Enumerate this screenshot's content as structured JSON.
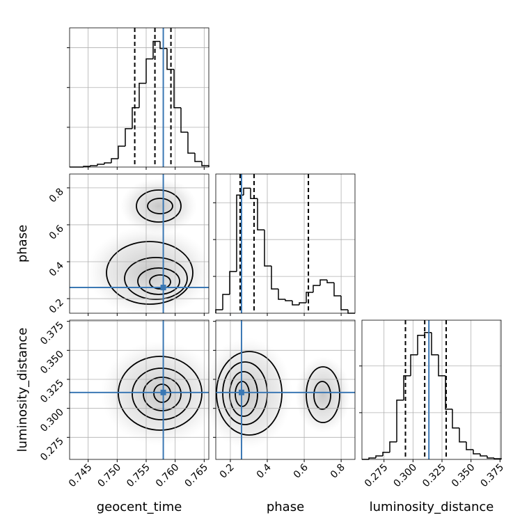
{
  "chart_data": {
    "type": "corner",
    "grid": true,
    "truth_color": "#3b78b4",
    "parameters": [
      {
        "name": "geocent_time",
        "xlim": [
          0.7418,
          0.7658
        ],
        "xticks": [
          0.745,
          {
            "value": 0.75,
            "label": "0.750"
          },
          0.755,
          {
            "value": 0.76,
            "label": "0.760"
          },
          0.765
        ],
        "bins": [
          0.7418,
          0.743,
          0.7442,
          0.7454,
          0.7466,
          0.7478,
          0.749,
          0.7502,
          0.7514,
          0.7526,
          0.7538,
          0.755,
          0.7562,
          0.7574,
          0.7586,
          0.7598,
          0.761,
          0.7622,
          0.7634,
          0.7646,
          0.7658
        ],
        "counts": [
          0,
          0,
          9,
          18,
          35,
          53,
          105,
          263,
          482,
          746,
          1053,
          1360,
          1579,
          1491,
          1228,
          746,
          439,
          175,
          70,
          18
        ],
        "ylim": [
          0,
          1750
        ],
        "yticks": [
          500,
          1000,
          1500
        ],
        "quantiles": [
          0.75303,
          0.75651,
          0.75927
        ],
        "truth": 0.75795
      },
      {
        "name": "phase",
        "xlim": [
          0.121,
          0.875
        ],
        "xticks": [
          0.2,
          0.4,
          0.6,
          0.8
        ],
        "bins": [
          0.121,
          0.1587,
          0.1964,
          0.2341,
          0.2718,
          0.3095,
          0.3472,
          0.3849,
          0.4226,
          0.4603,
          0.498,
          0.5357,
          0.5734,
          0.6111,
          0.6488,
          0.6865,
          0.7242,
          0.7619,
          0.7996,
          0.8373,
          0.875
        ],
        "counts": [
          47,
          255,
          566,
          1604,
          1698,
          1557,
          1132,
          642,
          330,
          189,
          170,
          113,
          142,
          283,
          377,
          453,
          415,
          236,
          47,
          0
        ],
        "ylim": [
          0,
          1890
        ],
        "yticks": [
          500,
          1000,
          1500
        ],
        "quantiles": [
          0.2528,
          0.3283,
          0.6226
        ],
        "truth": 0.2604
      },
      {
        "name": "luminosity_distance",
        "xlim": [
          0.256,
          0.376
        ],
        "xticks": [
          0.275,
          {
            "value": 0.3,
            "label": "0.300"
          },
          0.325,
          {
            "value": 0.35,
            "label": "0.350"
          },
          0.375
        ],
        "bins": [
          0.256,
          0.262,
          0.268,
          0.274,
          0.28,
          0.286,
          0.292,
          0.298,
          0.304,
          0.31,
          0.316,
          0.322,
          0.328,
          0.334,
          0.34,
          0.346,
          0.352,
          0.358,
          0.364,
          0.37,
          0.376
        ],
        "counts": [
          0,
          15,
          37,
          75,
          187,
          634,
          895,
          1119,
          1328,
          1358,
          1119,
          895,
          537,
          336,
          187,
          104,
          60,
          37,
          15,
          7
        ],
        "ylim": [
          0,
          1490
        ],
        "yticks": [
          500,
          1000
        ],
        "quantiles": [
          0.2935,
          0.3101,
          0.3286
        ],
        "truth": 0.3137
      }
    ]
  }
}
